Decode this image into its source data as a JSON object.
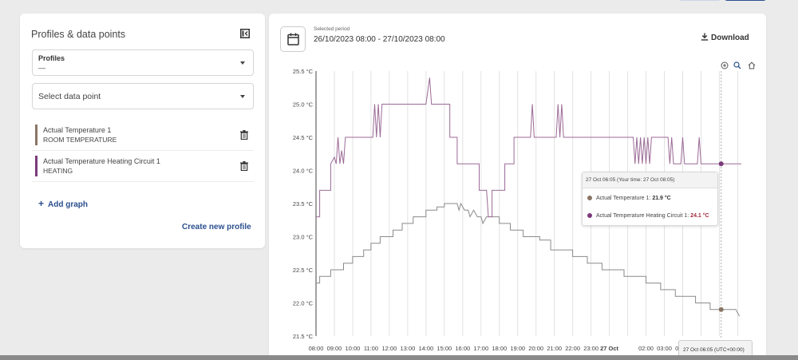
{
  "left_panel": {
    "title": "Profiles & data points",
    "profiles_label": "Profiles",
    "profiles_value": "—",
    "datapoint_placeholder": "Select data point",
    "datapoints": [
      {
        "name": "Actual Temperature 1",
        "sub": "ROOM TEMPERATURE",
        "color": "#8a7565"
      },
      {
        "name": "Actual Temperature Heating Circuit 1",
        "sub": "HEATING",
        "color": "#7b3a7a"
      }
    ],
    "add_graph_label": "Add graph",
    "create_profile_label": "Create new profile"
  },
  "right_panel": {
    "period_label": "Selected period",
    "period_value": "26/10/2023 08:00 - 27/10/2023 08:00",
    "download_label": "Download"
  },
  "tooltip": {
    "header": "27 Oct 06:05 (Your time: 27 Oct 08:05)",
    "row1_label": "Actual Temperature 1:",
    "row1_value": "21.9 °C",
    "row2_label": "Actual Temperature Heating Circuit 1:",
    "row2_value": "24.1 °C"
  },
  "crosshair_label": "27 Oct 06:05 (UTC+00:00)",
  "chart_data": {
    "type": "line",
    "y_ticks": [
      "21.5 °C",
      "22.0 °C",
      "22.5 °C",
      "23.0 °C",
      "23.5 °C",
      "24.0 °C",
      "24.5 °C",
      "25.0 °C",
      "25.5 °C"
    ],
    "y_range": [
      21.5,
      25.5
    ],
    "x_ticks": [
      "08:00",
      "09:00",
      "10:00",
      "11:00",
      "12:00",
      "13:00",
      "14:00",
      "15:00",
      "16:00",
      "17:00",
      "18:00",
      "19:00",
      "20:00",
      "21:00",
      "22:00",
      "23:00",
      "27 Oct",
      "02:00",
      "03:00",
      "04:00",
      "05:00",
      "06:00",
      "07:00"
    ],
    "x_range_hours": [
      0,
      23.2
    ],
    "grid": true,
    "colors": {
      "room": "#8a8a8a",
      "heating": "#9b6a96",
      "room_dot": "#8a7565",
      "heating_dot": "#7b3a7a"
    },
    "series": [
      {
        "name": "Actual Temperature 1",
        "points": [
          [
            0,
            22.3
          ],
          [
            0.2,
            22.3
          ],
          [
            0.2,
            22.4
          ],
          [
            0.8,
            22.4
          ],
          [
            0.8,
            22.5
          ],
          [
            1.5,
            22.5
          ],
          [
            1.5,
            22.6
          ],
          [
            2,
            22.6
          ],
          [
            2,
            22.7
          ],
          [
            2.6,
            22.7
          ],
          [
            2.6,
            22.8
          ],
          [
            3,
            22.8
          ],
          [
            3,
            22.9
          ],
          [
            3.5,
            22.9
          ],
          [
            3.5,
            23.0
          ],
          [
            4.2,
            23.0
          ],
          [
            4.2,
            23.1
          ],
          [
            4.7,
            23.1
          ],
          [
            4.7,
            23.2
          ],
          [
            5.3,
            23.2
          ],
          [
            5.3,
            23.3
          ],
          [
            6,
            23.3
          ],
          [
            6,
            23.4
          ],
          [
            6.6,
            23.4
          ],
          [
            6.6,
            23.45
          ],
          [
            7,
            23.45
          ],
          [
            7,
            23.5
          ],
          [
            7.7,
            23.5
          ],
          [
            7.8,
            23.4
          ],
          [
            7.9,
            23.5
          ],
          [
            8.1,
            23.4
          ],
          [
            8.3,
            23.4
          ],
          [
            8.4,
            23.3
          ],
          [
            8.6,
            23.4
          ],
          [
            8.8,
            23.3
          ],
          [
            9,
            23.3
          ],
          [
            9.1,
            23.2
          ],
          [
            9.3,
            23.3
          ],
          [
            10,
            23.3
          ],
          [
            10,
            23.2
          ],
          [
            10.6,
            23.2
          ],
          [
            10.6,
            23.1
          ],
          [
            11.3,
            23.1
          ],
          [
            11.3,
            23.0
          ],
          [
            12.2,
            23.0
          ],
          [
            12.2,
            22.95
          ],
          [
            12.8,
            22.95
          ],
          [
            12.8,
            22.8
          ],
          [
            14,
            22.8
          ],
          [
            14,
            22.7
          ],
          [
            14.8,
            22.7
          ],
          [
            14.8,
            22.6
          ],
          [
            15.6,
            22.6
          ],
          [
            15.6,
            22.5
          ],
          [
            16.8,
            22.5
          ],
          [
            16.8,
            22.4
          ],
          [
            18,
            22.4
          ],
          [
            18,
            22.3
          ],
          [
            18.8,
            22.3
          ],
          [
            18.8,
            22.2
          ],
          [
            19.6,
            22.2
          ],
          [
            19.6,
            22.1
          ],
          [
            20.7,
            22.1
          ],
          [
            20.7,
            22.0
          ],
          [
            21.5,
            22.0
          ],
          [
            21.5,
            21.9
          ],
          [
            22.1,
            21.9
          ],
          [
            22.9,
            21.9
          ],
          [
            23.1,
            21.8
          ]
        ]
      },
      {
        "name": "Actual Temperature Heating Circuit 1",
        "points": [
          [
            0,
            23.3
          ],
          [
            0.2,
            23.3
          ],
          [
            0.2,
            23.7
          ],
          [
            0.8,
            23.7
          ],
          [
            0.8,
            24.1
          ],
          [
            1,
            24.2
          ],
          [
            1.1,
            24.1
          ],
          [
            1.2,
            24.5
          ],
          [
            1.3,
            24.1
          ],
          [
            1.4,
            24.3
          ],
          [
            1.5,
            24.1
          ],
          [
            1.6,
            24.5
          ],
          [
            3.1,
            24.5
          ],
          [
            3.2,
            25.0
          ],
          [
            3.3,
            24.5
          ],
          [
            3.4,
            25.0
          ],
          [
            3.5,
            24.5
          ],
          [
            3.6,
            25.0
          ],
          [
            6,
            25.0
          ],
          [
            6.2,
            25.4
          ],
          [
            6.3,
            25.0
          ],
          [
            7.3,
            25.0
          ],
          [
            7.3,
            24.5
          ],
          [
            7.7,
            24.5
          ],
          [
            7.7,
            24.1
          ],
          [
            8.9,
            24.1
          ],
          [
            8.9,
            23.7
          ],
          [
            9.3,
            23.7
          ],
          [
            9.4,
            23.3
          ],
          [
            9.6,
            23.3
          ],
          [
            9.6,
            23.7
          ],
          [
            10.3,
            23.7
          ],
          [
            10.3,
            24.1
          ],
          [
            10.8,
            24.1
          ],
          [
            10.8,
            24.5
          ],
          [
            11.7,
            24.5
          ],
          [
            11.8,
            25.0
          ],
          [
            11.9,
            24.5
          ],
          [
            13.1,
            24.5
          ],
          [
            13.2,
            25.0
          ],
          [
            13.3,
            24.5
          ],
          [
            13.4,
            25.0
          ],
          [
            13.5,
            24.5
          ],
          [
            17.3,
            24.5
          ],
          [
            17.4,
            24.1
          ],
          [
            17.5,
            24.5
          ],
          [
            17.6,
            24.1
          ],
          [
            17.7,
            24.5
          ],
          [
            17.8,
            24.1
          ],
          [
            17.9,
            24.5
          ],
          [
            18.0,
            24.1
          ],
          [
            18.1,
            24.5
          ],
          [
            18.2,
            24.1
          ],
          [
            18.3,
            24.5
          ],
          [
            19.2,
            24.5
          ],
          [
            19.3,
            24.1
          ],
          [
            19.4,
            24.5
          ],
          [
            19.5,
            24.1
          ],
          [
            19.9,
            24.1
          ],
          [
            20.0,
            24.5
          ],
          [
            20.1,
            24.1
          ],
          [
            20.8,
            24.1
          ],
          [
            20.9,
            24.5
          ],
          [
            21.0,
            24.1
          ],
          [
            22.1,
            24.1
          ],
          [
            23.2,
            24.1
          ]
        ]
      }
    ],
    "crosshair_hour": 22.1
  }
}
